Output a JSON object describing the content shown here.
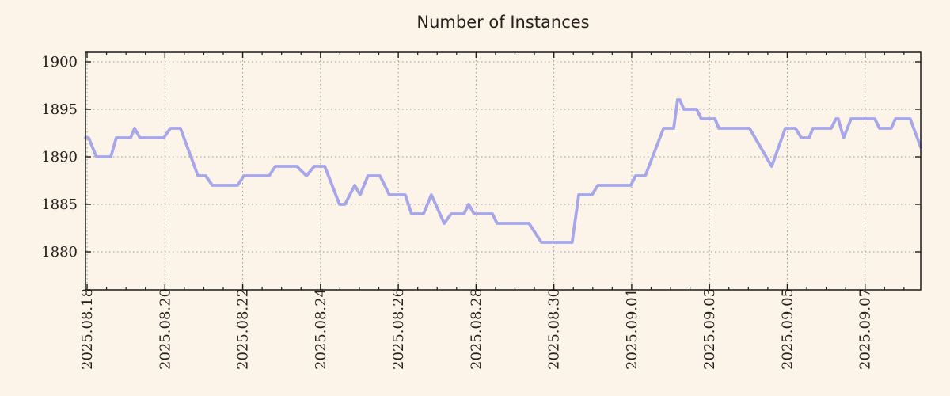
{
  "title": "Number of Instances",
  "colors": {
    "background": "#fdf4e9",
    "line": "#a6a6e8",
    "frame": "#1a1a1a",
    "grid": "#999999",
    "text": "#25201d"
  },
  "chart_data": {
    "type": "line",
    "title": "Number of Instances",
    "grid": true,
    "legend": false,
    "x_axis": {
      "unit": "date",
      "tick_labels": [
        "2025.08.18",
        "2025.08.20",
        "2025.08.22",
        "2025.08.24",
        "2025.08.26",
        "2025.08.28",
        "2025.08.30",
        "2025.09.01",
        "2025.09.03",
        "2025.09.05",
        "2025.09.07"
      ],
      "tick_positions_days": [
        0,
        2,
        4,
        6,
        8,
        10,
        12,
        14,
        16,
        18,
        20
      ],
      "minor_tick_interval_days": 0.5,
      "xlim_days": [
        -0.041,
        21.43
      ],
      "labels_rotated_degrees": 90
    },
    "y_axis": {
      "tick_labels": [
        "1880",
        "1885",
        "1890",
        "1895",
        "1900"
      ],
      "tick_values": [
        1880,
        1885,
        1890,
        1895,
        1900
      ],
      "ylim": [
        1876,
        1901
      ]
    },
    "series": [
      {
        "name": "instances",
        "color": "#a6a6e8",
        "points_days_value": [
          [
            -0.04,
            1892
          ],
          [
            0.04,
            1892
          ],
          [
            0.24,
            1890
          ],
          [
            0.61,
            1890
          ],
          [
            0.75,
            1892
          ],
          [
            1.12,
            1892
          ],
          [
            1.22,
            1893
          ],
          [
            1.36,
            1892
          ],
          [
            1.97,
            1892
          ],
          [
            2.14,
            1893
          ],
          [
            2.4,
            1893
          ],
          [
            2.85,
            1888
          ],
          [
            3.05,
            1888
          ],
          [
            3.22,
            1887
          ],
          [
            3.87,
            1887
          ],
          [
            4.03,
            1888
          ],
          [
            4.68,
            1888
          ],
          [
            4.84,
            1889
          ],
          [
            5.39,
            1889
          ],
          [
            5.64,
            1888
          ],
          [
            5.84,
            1889
          ],
          [
            6.11,
            1889
          ],
          [
            6.49,
            1885
          ],
          [
            6.63,
            1885
          ],
          [
            6.88,
            1887
          ],
          [
            7.02,
            1886
          ],
          [
            7.22,
            1888
          ],
          [
            7.53,
            1888
          ],
          [
            7.77,
            1886
          ],
          [
            8.18,
            1886
          ],
          [
            8.34,
            1884
          ],
          [
            8.65,
            1884
          ],
          [
            8.85,
            1886
          ],
          [
            9.18,
            1883
          ],
          [
            9.36,
            1884
          ],
          [
            9.69,
            1884
          ],
          [
            9.81,
            1885
          ],
          [
            9.95,
            1884
          ],
          [
            10.42,
            1884
          ],
          [
            10.54,
            1883
          ],
          [
            11.36,
            1883
          ],
          [
            11.68,
            1881
          ],
          [
            12.47,
            1881
          ],
          [
            12.64,
            1886
          ],
          [
            12.98,
            1886
          ],
          [
            13.13,
            1887
          ],
          [
            13.98,
            1887
          ],
          [
            14.1,
            1888
          ],
          [
            14.35,
            1888
          ],
          [
            14.82,
            1893
          ],
          [
            15.08,
            1893
          ],
          [
            15.18,
            1896
          ],
          [
            15.24,
            1896
          ],
          [
            15.34,
            1895
          ],
          [
            15.67,
            1895
          ],
          [
            15.79,
            1894
          ],
          [
            16.14,
            1894
          ],
          [
            16.24,
            1893
          ],
          [
            17.03,
            1893
          ],
          [
            17.6,
            1889
          ],
          [
            17.95,
            1893
          ],
          [
            18.21,
            1893
          ],
          [
            18.36,
            1892
          ],
          [
            18.56,
            1892
          ],
          [
            18.66,
            1893
          ],
          [
            19.13,
            1893
          ],
          [
            19.25,
            1894
          ],
          [
            19.31,
            1894
          ],
          [
            19.45,
            1892
          ],
          [
            19.64,
            1894
          ],
          [
            20.25,
            1894
          ],
          [
            20.37,
            1893
          ],
          [
            20.67,
            1893
          ],
          [
            20.78,
            1894
          ],
          [
            21.16,
            1894
          ],
          [
            21.43,
            1891
          ]
        ]
      }
    ]
  }
}
